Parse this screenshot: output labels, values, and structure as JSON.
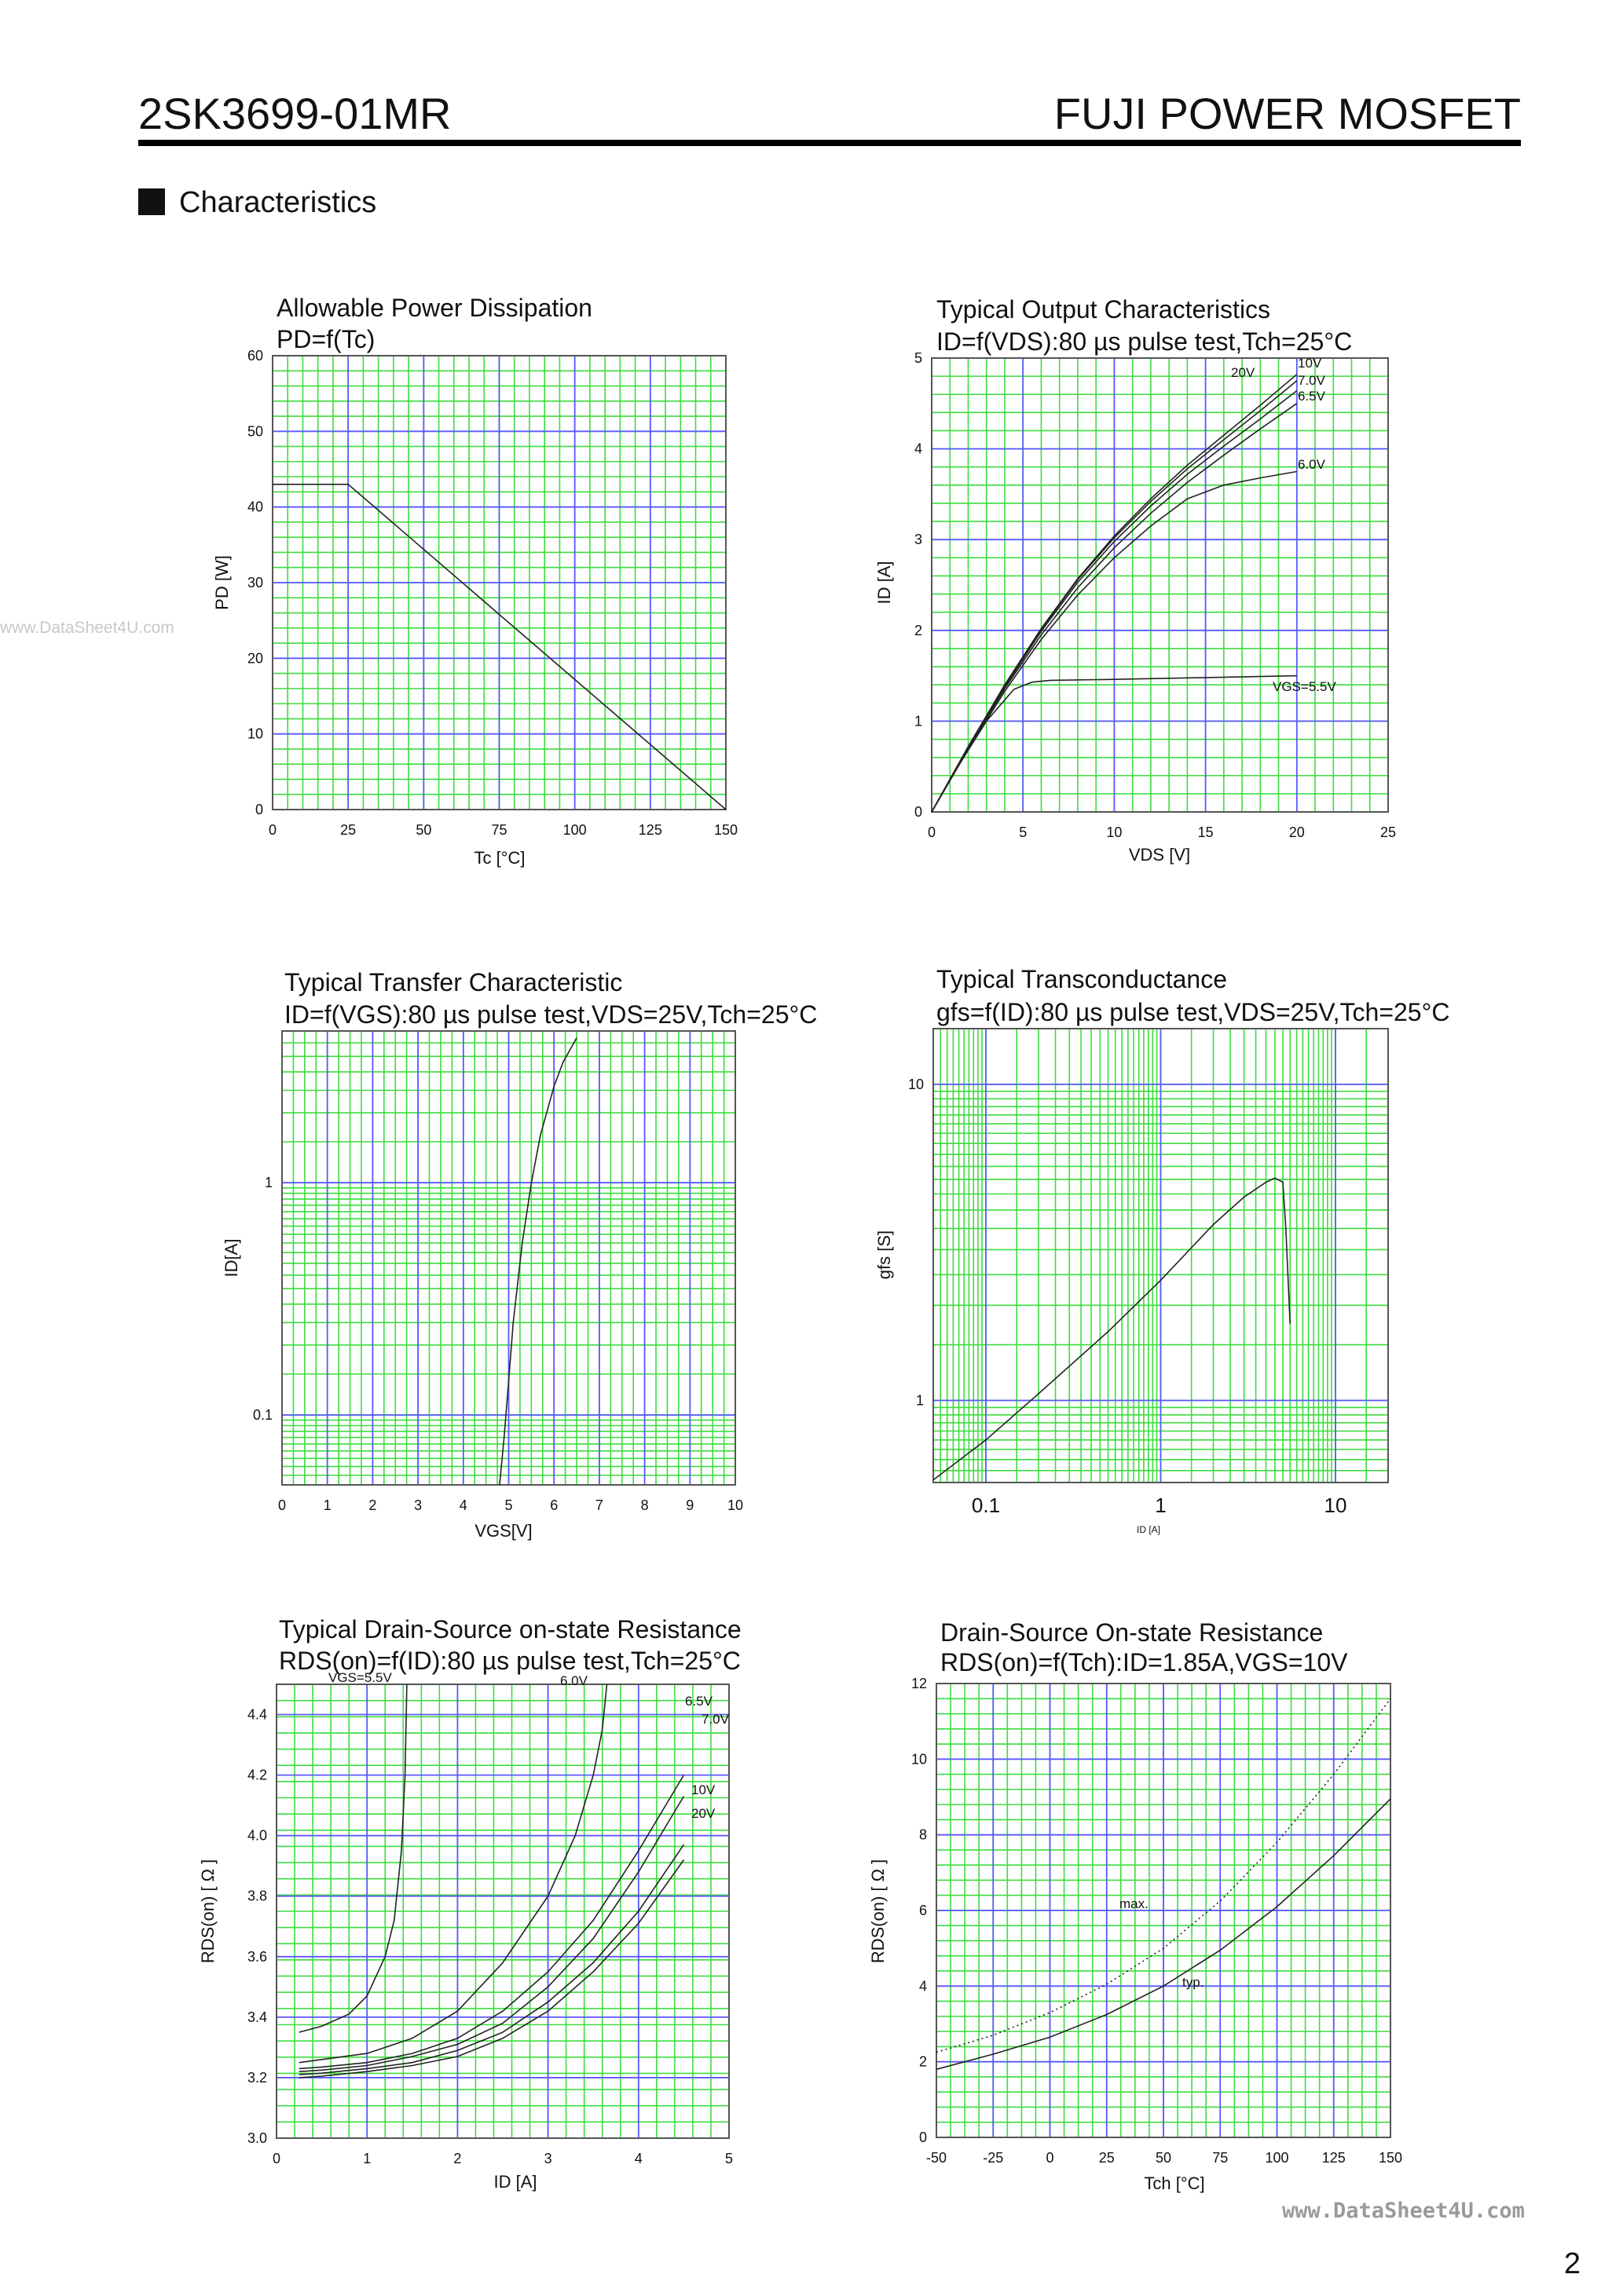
{
  "header": {
    "part_number": "2SK3699-01MR",
    "brand": "FUJI POWER MOSFET",
    "section_title": "Characteristics"
  },
  "watermark_left": "www.DataSheet4U.com",
  "watermark_bottom": "www.DataSheet4U.com",
  "page_number": "2",
  "chart_data": [
    {
      "id": "pd",
      "type": "line",
      "title": "Allowable Power Dissipation",
      "subtitle": "PD=f(Tc)",
      "xlabel": "Tc [°C]",
      "ylabel": "PD [W]",
      "xlim": [
        0,
        150
      ],
      "ylim": [
        0,
        60
      ],
      "xticks": [
        0,
        25,
        50,
        75,
        100,
        125,
        150
      ],
      "yticks": [
        0,
        10,
        20,
        30,
        40,
        50,
        60
      ],
      "series": [
        {
          "name": "PD",
          "x": [
            0,
            25,
            150
          ],
          "y": [
            43,
            43,
            0
          ]
        }
      ]
    },
    {
      "id": "output",
      "type": "line",
      "title": "Typical Output Characteristics",
      "subtitle": "ID=f(VDS):80 µs pulse test,Tch=25°C",
      "xlabel": "VDS [V]",
      "ylabel": "ID [A]",
      "xlim": [
        0,
        25
      ],
      "ylim": [
        0,
        5
      ],
      "xticks": [
        0,
        5,
        10,
        15,
        20,
        25
      ],
      "yticks": [
        0,
        1,
        2,
        3,
        4,
        5
      ],
      "series": [
        {
          "name": "20V",
          "x": [
            0,
            2,
            4,
            6,
            8,
            10,
            12,
            14,
            16,
            18,
            20
          ],
          "y": [
            0,
            0.72,
            1.4,
            2.02,
            2.57,
            3.04,
            3.45,
            3.82,
            4.15,
            4.48,
            4.82
          ]
        },
        {
          "name": "10V",
          "x": [
            0,
            2,
            4,
            6,
            8,
            10,
            12,
            14,
            16,
            18,
            20
          ],
          "y": [
            0,
            0.72,
            1.4,
            2.01,
            2.56,
            3.02,
            3.42,
            3.78,
            4.1,
            4.42,
            4.75
          ]
        },
        {
          "name": "7.0V",
          "x": [
            0,
            2,
            4,
            6,
            8,
            10,
            12,
            14,
            16,
            18,
            20
          ],
          "y": [
            0,
            0.71,
            1.38,
            1.99,
            2.53,
            2.98,
            3.37,
            3.72,
            4.03,
            4.33,
            4.64
          ]
        },
        {
          "name": "6.5V",
          "x": [
            0,
            2,
            4,
            6,
            8,
            10,
            12,
            14,
            16,
            18,
            20
          ],
          "y": [
            0,
            0.7,
            1.36,
            1.95,
            2.47,
            2.91,
            3.29,
            3.63,
            3.93,
            4.22,
            4.5
          ]
        },
        {
          "name": "6.0V",
          "x": [
            0,
            2,
            4,
            6,
            8,
            10,
            12,
            14,
            16,
            18,
            20
          ],
          "y": [
            0,
            0.69,
            1.33,
            1.9,
            2.39,
            2.8,
            3.15,
            3.45,
            3.6,
            3.68,
            3.75
          ]
        },
        {
          "name": "VGS=5.5V",
          "x": [
            0,
            1.5,
            3,
            4.5,
            5.5,
            6.5,
            10,
            15,
            20
          ],
          "y": [
            0,
            0.52,
            1.0,
            1.35,
            1.43,
            1.45,
            1.46,
            1.48,
            1.5
          ]
        }
      ]
    },
    {
      "id": "transfer",
      "type": "line",
      "title": "Typical Transfer Characteristic",
      "subtitle": "ID=f(VGS):80 µs pulse test,VDS=25V,Tch=25°C",
      "xlabel": "VGS[V]",
      "ylabel": "ID[A]",
      "xscale": "linear",
      "yscale": "log",
      "xlim": [
        0,
        10
      ],
      "ylim": [
        0.05,
        4.5
      ],
      "xticks": [
        0,
        1,
        2,
        3,
        4,
        5,
        6,
        7,
        8,
        9,
        10
      ],
      "yticks": [
        0.1,
        1
      ],
      "series": [
        {
          "name": "ID",
          "x": [
            4.8,
            4.9,
            5.0,
            5.1,
            5.3,
            5.5,
            5.7,
            6.0,
            6.2,
            6.5
          ],
          "y": [
            0.05,
            0.08,
            0.14,
            0.25,
            0.55,
            1.0,
            1.6,
            2.6,
            3.3,
            4.2
          ]
        }
      ]
    },
    {
      "id": "transconductance",
      "type": "line",
      "title": "Typical Transconductance",
      "subtitle": "gfs=f(ID):80 µs pulse test,VDS=25V,Tch=25°C",
      "xlabel": "ID [A]",
      "ylabel": "gfs [S]",
      "xscale": "log",
      "yscale": "log",
      "xlim": [
        0.05,
        20
      ],
      "ylim": [
        0.55,
        15
      ],
      "xticks": [
        0.1,
        1,
        10
      ],
      "yticks": [
        1,
        10
      ],
      "series": [
        {
          "name": "gfs",
          "x": [
            0.05,
            0.1,
            0.2,
            0.5,
            1,
            2,
            3,
            4,
            4.5,
            5,
            5.2,
            5.5
          ],
          "y": [
            0.56,
            0.75,
            1.05,
            1.65,
            2.4,
            3.6,
            4.4,
            4.9,
            5.05,
            4.9,
            3.5,
            1.75
          ]
        }
      ]
    },
    {
      "id": "rdson_id",
      "type": "line",
      "title": "Typical Drain-Source on-state Resistance",
      "subtitle": "RDS(on)=f(ID):80  µs pulse test,Tch=25°C",
      "xlabel": "ID [A]",
      "ylabel": "RDS(on) [ Ω ]",
      "xlim": [
        0,
        5
      ],
      "ylim": [
        3.0,
        4.5
      ],
      "xticks": [
        0,
        1,
        2,
        3,
        4,
        5
      ],
      "yticks": [
        3.0,
        3.2,
        3.4,
        3.6,
        3.8,
        4.0,
        4.2,
        4.4
      ],
      "series": [
        {
          "name": "VGS=5.5V",
          "x": [
            0.25,
            0.5,
            0.8,
            1.0,
            1.2,
            1.3,
            1.38,
            1.42,
            1.44
          ],
          "y": [
            3.35,
            3.37,
            3.41,
            3.47,
            3.6,
            3.72,
            3.95,
            4.2,
            4.5
          ]
        },
        {
          "name": "6.0V",
          "x": [
            0.25,
            0.5,
            1.0,
            1.5,
            2.0,
            2.5,
            3.0,
            3.3,
            3.5,
            3.6,
            3.65
          ],
          "y": [
            3.25,
            3.26,
            3.28,
            3.33,
            3.42,
            3.58,
            3.8,
            4.0,
            4.2,
            4.35,
            4.5
          ]
        },
        {
          "name": "6.5V",
          "x": [
            0.25,
            0.5,
            1.0,
            1.5,
            2.0,
            2.5,
            3.0,
            3.5,
            4.0,
            4.5
          ],
          "y": [
            3.23,
            3.235,
            3.25,
            3.28,
            3.33,
            3.42,
            3.55,
            3.72,
            3.95,
            4.2
          ]
        },
        {
          "name": "7.0V",
          "x": [
            0.25,
            0.5,
            1.0,
            1.5,
            2.0,
            2.5,
            3.0,
            3.5,
            4.0,
            4.5
          ],
          "y": [
            3.22,
            3.225,
            3.24,
            3.27,
            3.31,
            3.38,
            3.5,
            3.66,
            3.88,
            4.13
          ]
        },
        {
          "name": "10V",
          "x": [
            0.25,
            0.5,
            1.0,
            1.5,
            2.0,
            2.5,
            3.0,
            3.5,
            4.0,
            4.5
          ],
          "y": [
            3.21,
            3.215,
            3.23,
            3.25,
            3.29,
            3.35,
            3.45,
            3.58,
            3.75,
            3.97
          ]
        },
        {
          "name": "20V",
          "x": [
            0.25,
            0.5,
            1.0,
            1.5,
            2.0,
            2.5,
            3.0,
            3.5,
            4.0,
            4.5
          ],
          "y": [
            3.2,
            3.205,
            3.22,
            3.24,
            3.27,
            3.33,
            3.42,
            3.55,
            3.71,
            3.92
          ]
        }
      ]
    },
    {
      "id": "rdson_tch",
      "type": "line",
      "title": "Drain-Source On-state Resistance",
      "subtitle": "RDS(on)=f(Tch):ID=1.85A,VGS=10V",
      "xlabel": "Tch [°C]",
      "ylabel": "RDS(on) [ Ω ]",
      "xlim": [
        -50,
        150
      ],
      "ylim": [
        0,
        12
      ],
      "xticks": [
        -50,
        -25,
        0,
        25,
        50,
        75,
        100,
        125,
        150
      ],
      "yticks": [
        0,
        2,
        4,
        6,
        8,
        10,
        12
      ],
      "series": [
        {
          "name": "max.",
          "style": "dotted",
          "x": [
            -50,
            -25,
            0,
            25,
            50,
            75,
            100,
            125,
            150
          ],
          "y": [
            2.25,
            2.7,
            3.3,
            4.05,
            5.0,
            6.25,
            7.8,
            9.6,
            11.6
          ]
        },
        {
          "name": "typ.",
          "x": [
            -50,
            -25,
            0,
            25,
            50,
            75,
            100,
            125,
            150
          ],
          "y": [
            1.8,
            2.2,
            2.65,
            3.25,
            4.0,
            4.95,
            6.1,
            7.45,
            8.95
          ]
        }
      ]
    }
  ]
}
